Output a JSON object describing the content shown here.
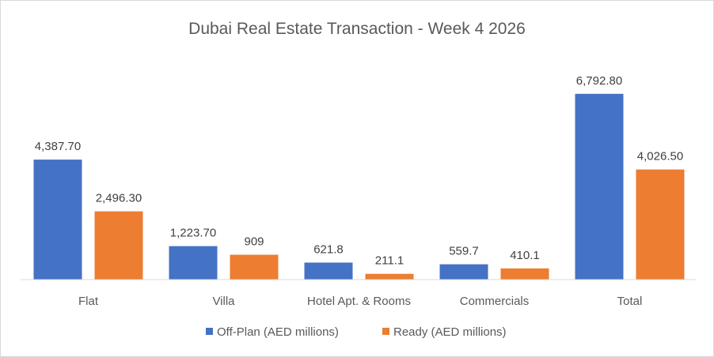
{
  "chart_data": {
    "type": "bar",
    "title": "Dubai Real Estate Transaction - Week 4 2026",
    "categories": [
      "Flat",
      "Villa",
      "Hotel Apt. & Rooms",
      "Commercials",
      "Total"
    ],
    "series": [
      {
        "name": "Off-Plan (AED millions)",
        "color": "#4472c4",
        "values": [
          4387.7,
          1223.7,
          621.8,
          559.7,
          6792.8
        ],
        "labels": [
          "4,387.70",
          "1,223.70",
          "621.8",
          "559.7",
          "6,792.80"
        ]
      },
      {
        "name": "Ready (AED millions)",
        "color": "#ed7d31",
        "values": [
          2496.3,
          909,
          211.1,
          410.1,
          4026.5
        ],
        "labels": [
          "2,496.30",
          "909",
          "211.1",
          "410.1",
          "4,026.50"
        ]
      }
    ],
    "ylim": [
      0,
      8000
    ],
    "grid": false,
    "legend": "bottom"
  }
}
